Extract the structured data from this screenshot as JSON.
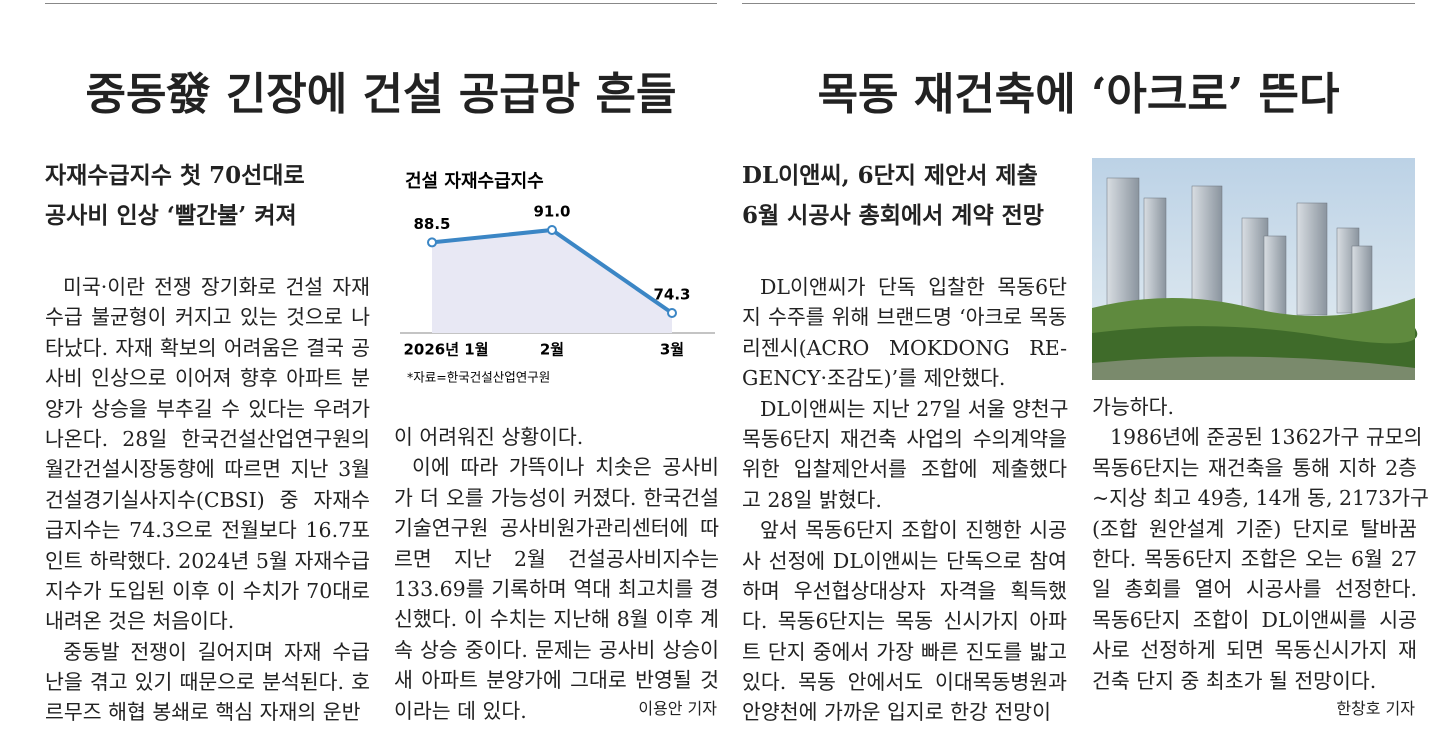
{
  "articles": [
    {
      "title": "중동發 긴장에 건설 공급망 흔들",
      "subtitle": [
        "자재수급지수 첫 70선대로",
        "공사비 인상 ‘빨간불’ 켜져"
      ],
      "columns": [
        {
          "paragraphs": [
            [
              "미국·이란 전쟁 장기화로 건설 자재",
              "수급 불균형이 커지고 있는 것으로 나",
              "타났다. 자재 확보의 어려움은 결국 공",
              "사비 인상으로 이어져 향후 아파트 분",
              "양가 상승을 부추길 수 있다는 우려가",
              "나온다. 28일 한국건설산업연구원의",
              "월간건설시장동향에 따르면 지난 3월",
              "건설경기실사지수(CBSI) 중 자재수",
              "급지수는 74.3으로 전월보다 16.7포",
              "인트 하락했다. 2024년 5월 자재수급",
              "지수가 도입된 이후 이 수치가 70대로",
              "내려온 것은 처음이다."
            ],
            [
              "중동발 전쟁이 길어지며 자재 수급",
              "난을 겪고 있기 때문으로 분석된다. 호",
              "르무즈 해협 봉쇄로 핵심 자재의 운반"
            ]
          ]
        },
        {
          "paragraphs": [
            [
              "이 어려워진 상황이다."
            ],
            [
              "이에 따라 가뜩이나 치솟은 공사비",
              "가 더 오를 가능성이 커졌다. 한국건설",
              "기술연구원 공사비원가관리센터에 따",
              "르면 지난 2월 건설공사비지수는",
              "133.69를 기록하며 역대 최고치를 경",
              "신했다. 이 수치는 지난해 8월 이후 계",
              "속 상승 중이다. 문제는 공사비 상승이",
              "새 아파트 분양가에 그대로 반영될 것",
              "이라는 데 있다."
            ]
          ]
        }
      ],
      "byline": "이용안 기자"
    },
    {
      "title": "목동 재건축에 ‘아크로’ 뜬다",
      "subtitle": [
        "DL이앤씨, 6단지 제안서 제출",
        "6월 시공사 총회에서 계약 전망"
      ],
      "columns": [
        {
          "paragraphs": [
            [
              "DL이앤씨가 단독 입찰한 목동6단",
              "지 수주를 위해 브랜드명 ‘아크로 목동",
              "리젠시(ACRO MOKDONG RE-",
              "GENCY·조감도)’를 제안했다."
            ],
            [
              "DL이앤씨는 지난 27일 서울 양천구",
              "목동6단지 재건축 사업의 수의계약을",
              "위한 입찰제안서를 조합에 제출했다",
              "고 28일 밝혔다."
            ],
            [
              "앞서 목동6단지 조합이 진행한 시공",
              "사 선정에 DL이앤씨는 단독으로 참여",
              "하며 우선협상대상자 자격을 획득했",
              "다. 목동6단지는 목동 신시가지 아파",
              "트 단지 중에서 가장 빠른 진도를 밟고",
              "있다. 목동 안에서도 이대목동병원과",
              "안양천에 가까운 입지로 한강 전망이"
            ]
          ]
        },
        {
          "paragraphs": [
            [
              "가능하다."
            ],
            [
              "1986년에 준공된 1362가구 규모의",
              "목동6단지는 재건축을 통해 지하 2층",
              "~지상 최고 49층, 14개 동, 2173가구",
              "(조합 원안설계 기준) 단지로 탈바꿈",
              "한다. 목동6단지 조합은 오는 6월 27",
              "일 총회를 열어 시공사를 선정한다.",
              "목동6단지 조합이 DL이앤씨를 시공",
              "사로 선정하게 되면 목동신시가지 재",
              "건축 단지 중 최초가 될 전망이다."
            ]
          ]
        }
      ],
      "byline": "한창호 기자"
    }
  ],
  "chart_data": {
    "type": "line",
    "title": "건설 자재수급지수",
    "categories": [
      "2026년 1월",
      "2월",
      "3월"
    ],
    "values": [
      88.5,
      91.0,
      74.3
    ],
    "value_labels": [
      "88.5",
      "91.0",
      "74.3"
    ],
    "color": "#3b86c5",
    "source": "*자료=한국건설산업연구원"
  }
}
